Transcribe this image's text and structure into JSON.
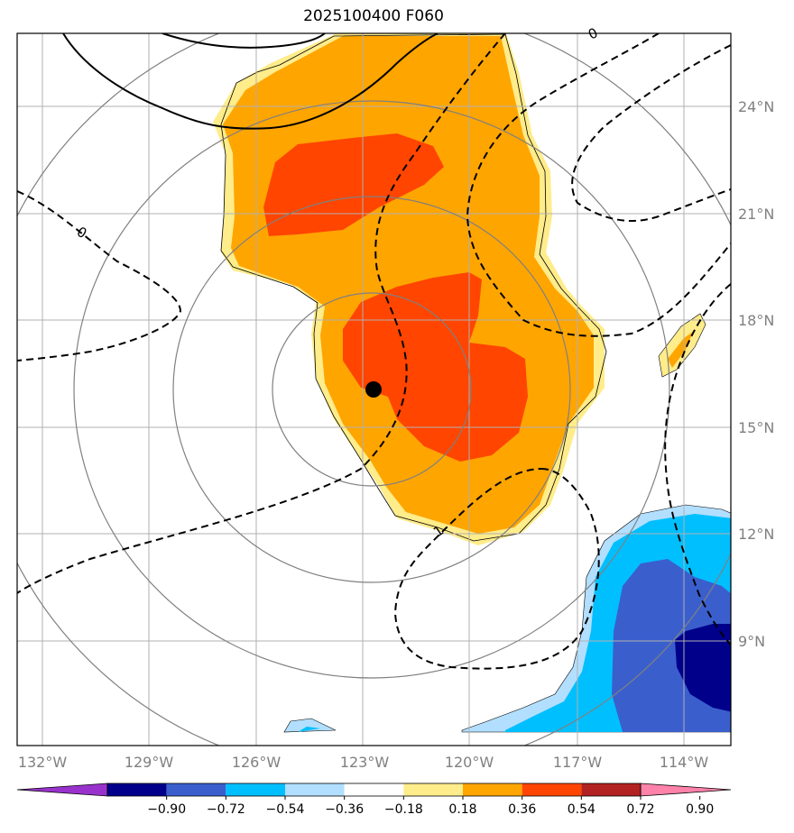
{
  "title": "2025100400 F060",
  "lon_labels": [
    "132°W",
    "129°W",
    "126°W",
    "123°W",
    "120°W",
    "117°W",
    "114°W"
  ],
  "lat_labels": [
    "24°N",
    "21°N",
    "18°N",
    "15°N",
    "12°N",
    "9°N"
  ],
  "contour_labels": [
    "0",
    "0",
    "1"
  ],
  "colorbar": {
    "ticks": [
      "−0.90",
      "−0.72",
      "−0.54",
      "−0.36",
      "−0.18",
      "0.18",
      "0.36",
      "0.54",
      "0.72",
      "0.90"
    ],
    "colors": [
      "#9932cc",
      "#00008b",
      "#3a5fcd",
      "#00bfff",
      "#b2dfff",
      "#ffffff",
      "#ffec8b",
      "#ffa500",
      "#ff4500",
      "#b22222",
      "#ff82ab"
    ]
  },
  "colors": {
    "light_yellow": "#ffec8b",
    "orange": "#ffa500",
    "red_orange": "#ff4500",
    "light_blue": "#b2dfff",
    "deep_sky_blue": "#00bfff",
    "royal_blue": "#3a5fcd",
    "navy": "#00008b",
    "grid": "#b0b0b0",
    "range_rings": "#808080"
  },
  "storm_center": {
    "lon": -122.7,
    "lat": 16.1
  }
}
